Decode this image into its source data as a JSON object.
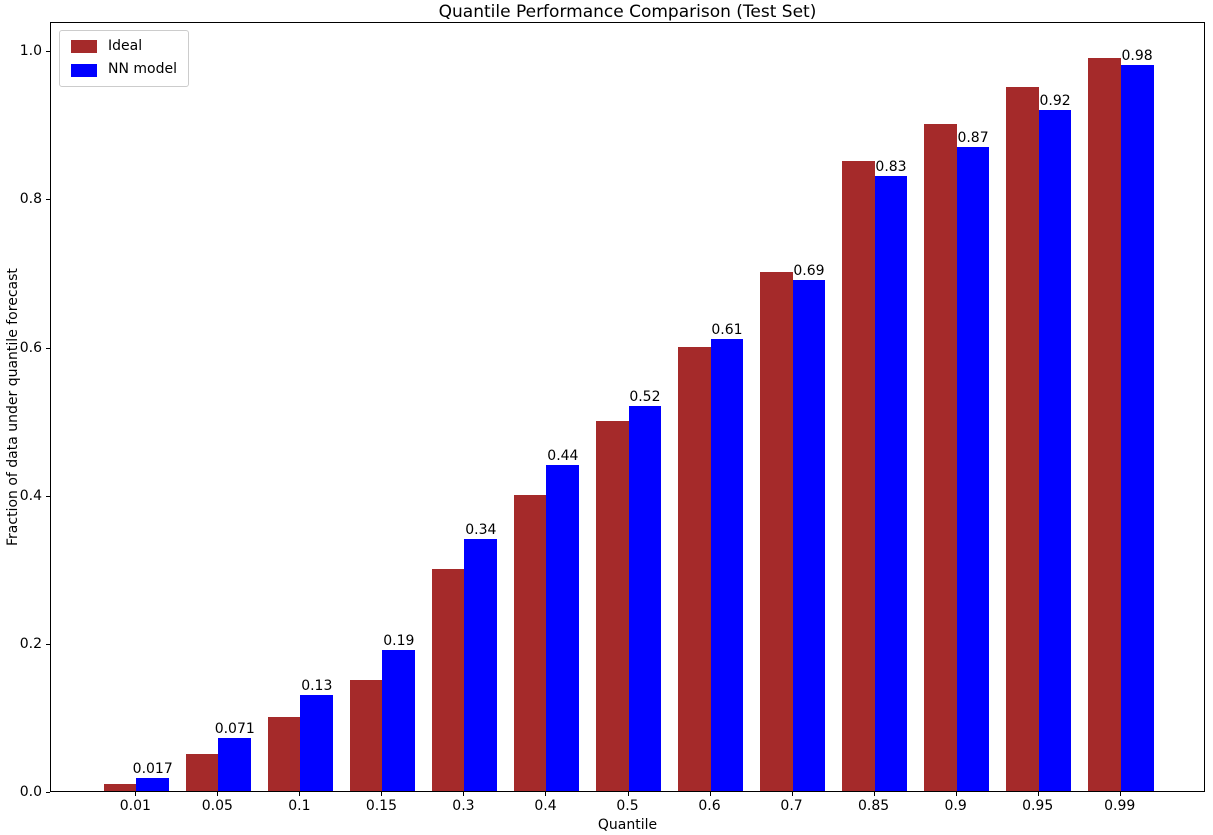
{
  "figure": {
    "title": "Quantile Performance Comparison (Test Set)",
    "xlabel": "Quantile",
    "ylabel": "Fraction of data under quantile forecast"
  },
  "chart_data": {
    "type": "bar",
    "title": "Quantile Performance Comparison (Test Set)",
    "xlabel": "Quantile",
    "ylabel": "Fraction of data under quantile forecast",
    "categories": [
      "0.01",
      "0.05",
      "0.1",
      "0.15",
      "0.3",
      "0.4",
      "0.5",
      "0.6",
      "0.7",
      "0.85",
      "0.9",
      "0.95",
      "0.99"
    ],
    "series": [
      {
        "name": "Ideal",
        "color": "#A52A2A",
        "values": [
          0.01,
          0.05,
          0.1,
          0.15,
          0.3,
          0.4,
          0.5,
          0.6,
          0.7,
          0.85,
          0.9,
          0.95,
          0.99
        ]
      },
      {
        "name": "NN model",
        "color": "#0000FF",
        "values": [
          0.017,
          0.071,
          0.13,
          0.19,
          0.34,
          0.44,
          0.52,
          0.61,
          0.69,
          0.83,
          0.87,
          0.92,
          0.98
        ],
        "bar_labels": [
          "0.017",
          "0.071",
          "0.13",
          "0.19",
          "0.34",
          "0.44",
          "0.52",
          "0.61",
          "0.69",
          "0.83",
          "0.87",
          "0.92",
          "0.98"
        ]
      }
    ],
    "yticks": [
      "0.0",
      "0.2",
      "0.4",
      "0.6",
      "0.8",
      "1.0"
    ],
    "ylim": [
      0,
      1.0395
    ],
    "xlim": [
      -1.04,
      13.04
    ],
    "bar_width": 0.4,
    "legend_position": "upper left",
    "grid": false
  }
}
